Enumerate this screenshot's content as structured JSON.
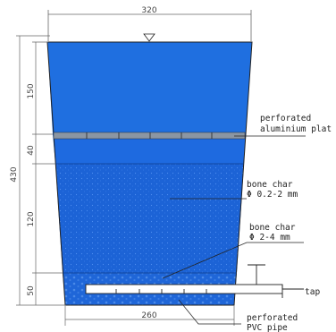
{
  "dimensions": {
    "top_width": "320",
    "bottom_width": "260",
    "total_height": "430",
    "layer_water": "150",
    "layer_plate": "40",
    "layer_fine": "120",
    "layer_coarse": "50"
  },
  "labels": {
    "plate_1": "perforated",
    "plate_2": "aluminium plat",
    "fine_1": "bone char",
    "fine_2": "Φ 0.2-2 mm",
    "coarse_1": "bone char",
    "coarse_2": "Φ 2-4 mm",
    "tap": "tap",
    "pipe_1": "perforated",
    "pipe_2": "PVC pipe"
  },
  "colors": {
    "water": "#1f6fe0",
    "bonechar": "#1c63d6",
    "plate": "#7a8a9a",
    "line": "#222222"
  },
  "icons": {
    "water_level": "water-level-triangle-icon"
  }
}
